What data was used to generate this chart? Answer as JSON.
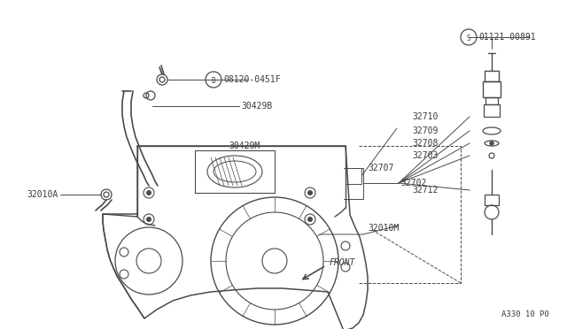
{
  "bg_color": "#ffffff",
  "line_color": "#4a4a4a",
  "text_color": "#3a3a3a",
  "footer": "A330 10 P0",
  "figsize": [
    6.4,
    3.72
  ],
  "dpi": 100,
  "xlim": [
    0,
    640
  ],
  "ylim": [
    0,
    372
  ]
}
